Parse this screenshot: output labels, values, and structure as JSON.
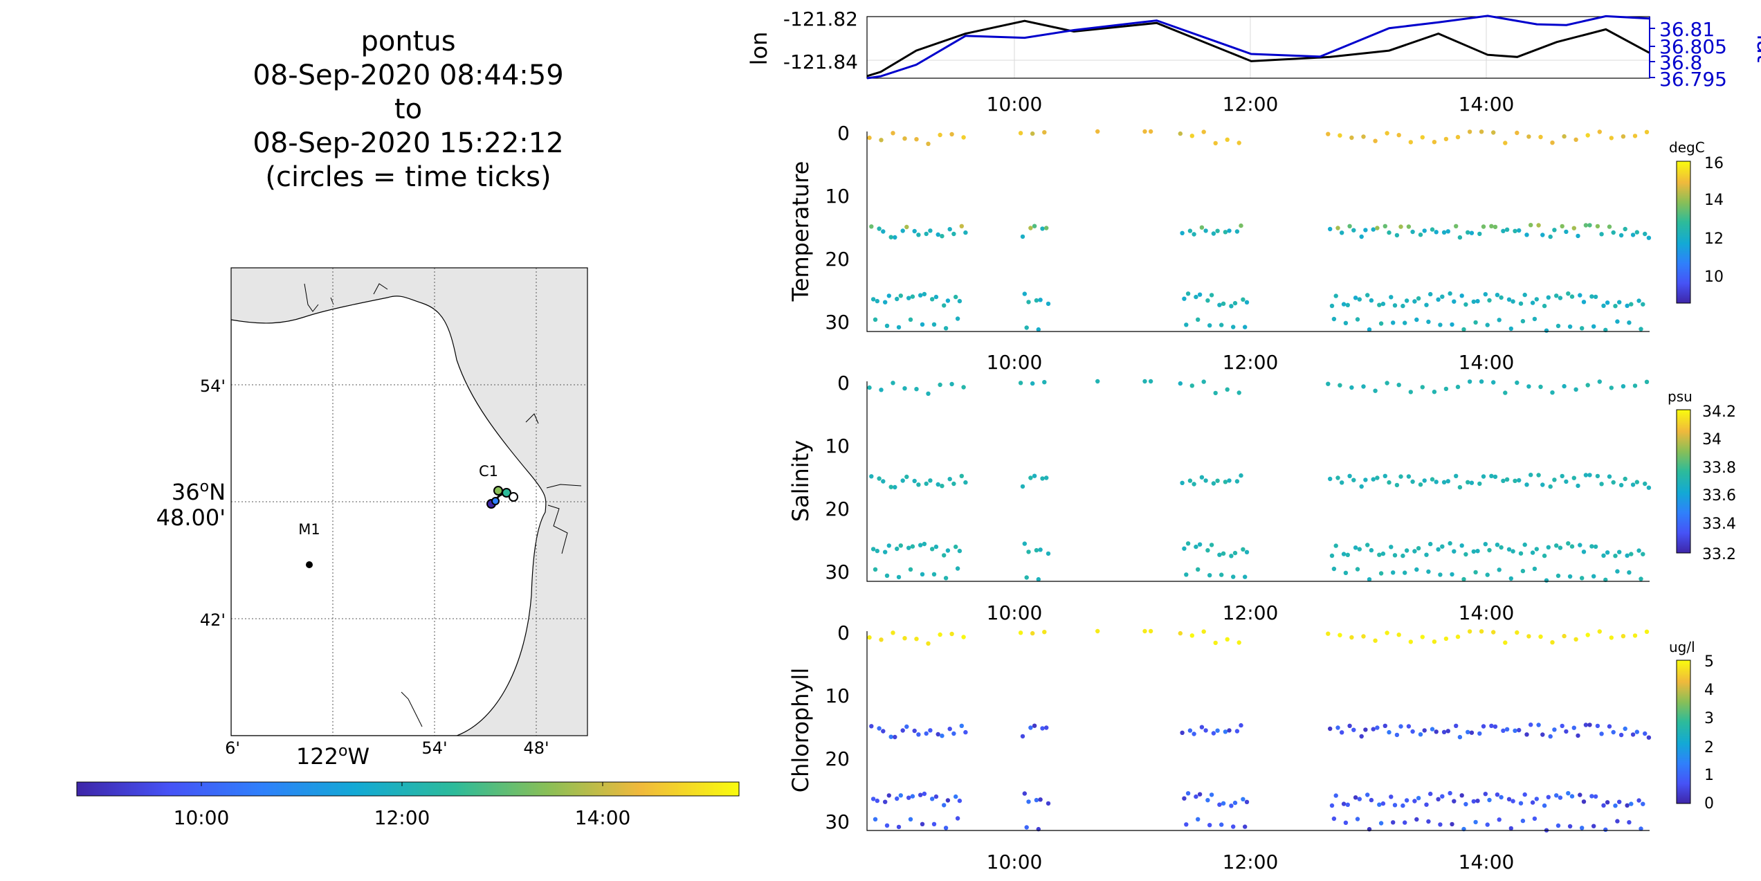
{
  "header": {
    "lines": [
      "pontus",
      "08-Sep-2020 08:44:59",
      "to",
      "08-Sep-2020 15:22:12",
      "(circles = time ticks)"
    ]
  },
  "map": {
    "lat_ticks": [
      "54'",
      "36°N 48.00'",
      "42'"
    ],
    "lon_ticks": [
      "6'",
      "122°W",
      "54'",
      "48'"
    ],
    "lat_deg": "36",
    "lat_deg_suffix": "N",
    "lat_minutes": "48.00'",
    "lon_deg": "122",
    "lon_deg_suffix": "W",
    "stations": [
      {
        "label": "M1"
      },
      {
        "label": "C1"
      }
    ],
    "land_color": "#e6e6e6",
    "water_color": "#ffffff"
  },
  "time_colorbar": {
    "ticks": [
      "10:00",
      "12:00",
      "14:00"
    ],
    "colormap": "parula"
  },
  "chart_data": [
    {
      "type": "line",
      "ylabel": "lon",
      "ylabel_right": "lat",
      "x_ticks": [
        "10:00",
        "12:00",
        "14:00"
      ],
      "xlim": [
        "08:44:59",
        "15:22:12"
      ],
      "y_left_ticks": [
        "-121.82",
        "-121.84"
      ],
      "y_right_ticks": [
        "36.81",
        "36.805",
        "36.8",
        "36.795"
      ],
      "grid": true,
      "series": [
        {
          "axis": "left",
          "color": "#000000",
          "x": [
            "08:45",
            "08:52",
            "09:10",
            "09:35",
            "10:05",
            "10:30",
            "11:12",
            "12:00",
            "12:40",
            "13:10",
            "13:35",
            "14:00",
            "14:15",
            "14:35",
            "15:00",
            "15:22"
          ],
          "y": [
            -121.848,
            -121.846,
            -121.836,
            -121.828,
            -121.822,
            -121.827,
            -121.823,
            -121.841,
            -121.839,
            -121.836,
            -121.828,
            -121.838,
            -121.839,
            -121.832,
            -121.826,
            -121.837
          ]
        },
        {
          "axis": "right",
          "color": "#0000cc",
          "x": [
            "08:45",
            "08:52",
            "09:10",
            "09:35",
            "10:05",
            "10:30",
            "11:12",
            "12:00",
            "12:35",
            "13:10",
            "13:35",
            "14:00",
            "14:25",
            "14:40",
            "15:00",
            "15:22"
          ],
          "y": [
            36.7945,
            36.795,
            36.798,
            36.8055,
            36.805,
            36.807,
            36.8095,
            36.8008,
            36.8001,
            36.8075,
            36.809,
            36.8107,
            36.8085,
            36.8083,
            36.8106,
            36.81
          ]
        }
      ]
    },
    {
      "type": "scatter",
      "ylabel": "Temperature",
      "colorbar_label": "degC",
      "colorbar_ticks": [
        "16",
        "14",
        "12",
        "10"
      ],
      "clim": [
        8.8,
        16
      ],
      "ylim": [
        0,
        31
      ],
      "y_ticks": [
        "0",
        "10",
        "20",
        "30"
      ],
      "x_ticks": [
        "10:00",
        "12:00",
        "14:00"
      ],
      "xlim": [
        "08:44:59",
        "15:22:12"
      ],
      "colormap": "parula"
    },
    {
      "type": "scatter",
      "ylabel": "Salinity",
      "colorbar_label": "psu",
      "colorbar_ticks": [
        "34.2",
        "34",
        "33.8",
        "33.6",
        "33.4",
        "33.2"
      ],
      "clim": [
        33.15,
        34.2
      ],
      "ylim": [
        0,
        31
      ],
      "y_ticks": [
        "0",
        "10",
        "20",
        "30"
      ],
      "x_ticks": [
        "10:00",
        "12:00",
        "14:00"
      ],
      "xlim": [
        "08:44:59",
        "15:22:12"
      ],
      "colormap": "parula"
    },
    {
      "type": "scatter",
      "ylabel": "Chlorophyll",
      "colorbar_label": "ug/l",
      "colorbar_ticks": [
        "5",
        "4",
        "3",
        "2",
        "1",
        "0"
      ],
      "clim": [
        0,
        5
      ],
      "ylim": [
        0,
        31
      ],
      "y_ticks": [
        "0",
        "10",
        "20",
        "30"
      ],
      "x_ticks": [
        "10:00",
        "12:00",
        "14:00"
      ],
      "xlim": [
        "08:44:59",
        "15:22:12"
      ],
      "colormap": "parula"
    }
  ]
}
